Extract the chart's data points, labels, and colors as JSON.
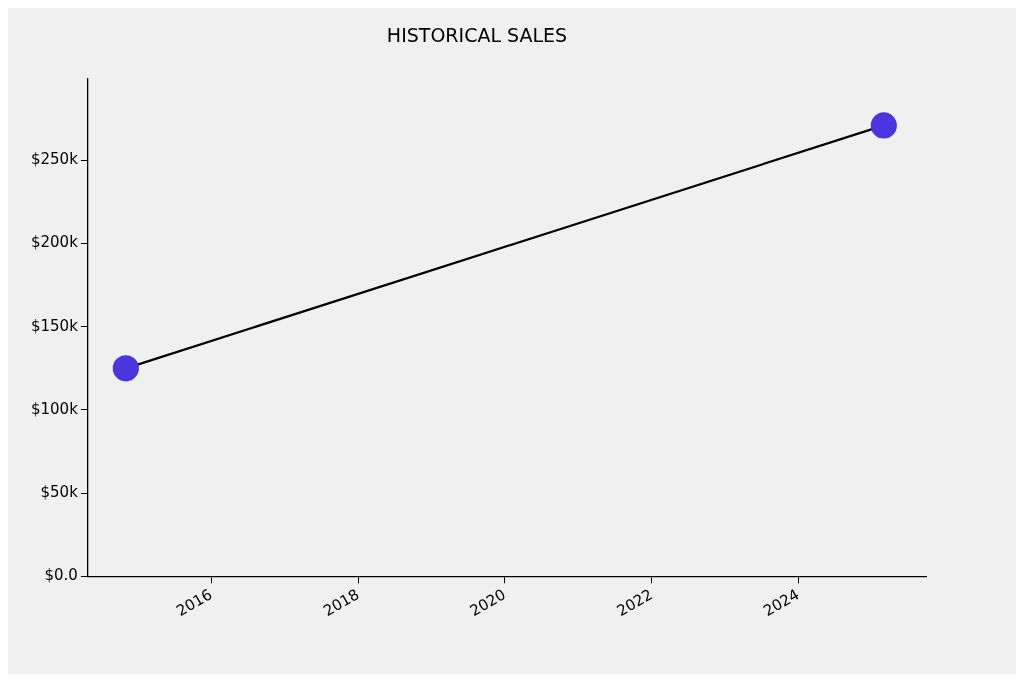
{
  "chart_data": {
    "type": "line",
    "title": "HISTORICAL SALES",
    "x": [
      "2014-11",
      "2025-03"
    ],
    "series": [
      {
        "color": "#4a35e0",
        "values": [
          125000,
          271000
        ]
      }
    ],
    "xlim": [
      "2014-04-26",
      "2025-09-27"
    ],
    "xticks": [
      "2016",
      "2018",
      "2020",
      "2022",
      "2024"
    ],
    "ylim": [
      0,
      299000
    ],
    "yticks": [
      {
        "value": 0,
        "label": "$0.0"
      },
      {
        "value": 50000,
        "label": "$50k"
      },
      {
        "value": 100000,
        "label": "$100k"
      },
      {
        "value": 150000,
        "label": "$150k"
      },
      {
        "value": 200000,
        "label": "$200k"
      },
      {
        "value": 250000,
        "label": "$250k"
      }
    ],
    "grid": false,
    "legend": false,
    "marker": "circle",
    "line_style": "solid"
  }
}
